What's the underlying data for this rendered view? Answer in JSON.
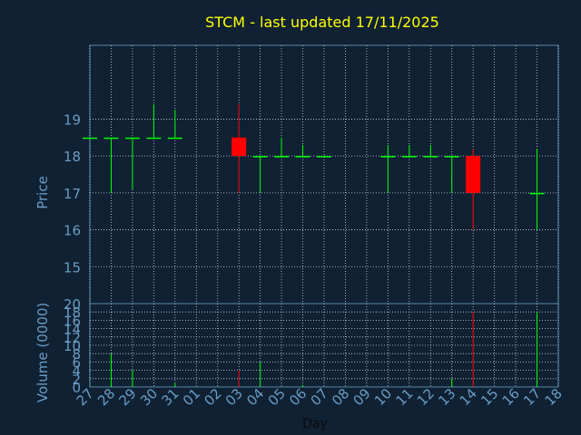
{
  "chart_data": [
    {
      "type": "candlestick",
      "title": "STCM - last updated 17/11/2025",
      "ylabel": "Price",
      "ylim": [
        14,
        21
      ],
      "yticks": [
        15,
        16,
        17,
        18,
        19
      ],
      "grid": true,
      "x_tick_labels": [
        "27",
        "28",
        "29",
        "30",
        "31",
        "01",
        "02",
        "03",
        "04",
        "05",
        "06",
        "07",
        "08",
        "09",
        "10",
        "11",
        "12",
        "13",
        "14",
        "15",
        "16",
        "17",
        "18"
      ],
      "candles": [
        {
          "day": "27",
          "open": 18.5,
          "high": 18.5,
          "low": 18.5,
          "close": 18.5
        },
        {
          "day": "28",
          "open": 18.5,
          "high": 18.5,
          "low": 17.0,
          "close": 18.5
        },
        {
          "day": "29",
          "open": 18.5,
          "high": 18.5,
          "low": 17.1,
          "close": 18.5
        },
        {
          "day": "30",
          "open": 18.5,
          "high": 19.4,
          "low": 18.5,
          "close": 18.5
        },
        {
          "day": "31",
          "open": 18.5,
          "high": 19.25,
          "low": 18.5,
          "close": 18.5
        },
        {
          "day": "03",
          "open": 18.5,
          "high": 19.4,
          "low": 17.0,
          "close": 18.0
        },
        {
          "day": "04",
          "open": 18.0,
          "high": 18.0,
          "low": 17.0,
          "close": 18.0
        },
        {
          "day": "05",
          "open": 18.0,
          "high": 18.5,
          "low": 18.0,
          "close": 18.0
        },
        {
          "day": "06",
          "open": 18.0,
          "high": 18.3,
          "low": 18.0,
          "close": 18.0
        },
        {
          "day": "07",
          "open": 18.0,
          "high": 18.0,
          "low": 18.0,
          "close": 18.0
        },
        {
          "day": "10",
          "open": 18.0,
          "high": 18.3,
          "low": 17.0,
          "close": 18.0
        },
        {
          "day": "11",
          "open": 18.0,
          "high": 18.3,
          "low": 18.0,
          "close": 18.0
        },
        {
          "day": "12",
          "open": 18.0,
          "high": 18.3,
          "low": 18.0,
          "close": 18.0
        },
        {
          "day": "13",
          "open": 18.0,
          "high": 18.0,
          "low": 17.0,
          "close": 18.0
        },
        {
          "day": "14",
          "open": 18.0,
          "high": 18.2,
          "low": 16.0,
          "close": 17.0
        },
        {
          "day": "17",
          "open": 17.0,
          "high": 18.2,
          "low": 16.0,
          "close": 17.0
        }
      ],
      "colors": {
        "up": "#00ff00",
        "down": "#ff0000"
      }
    },
    {
      "type": "bar",
      "ylabel": "Volume (0000)",
      "xlabel": "Day",
      "ylim": [
        0,
        20
      ],
      "yticks": [
        0,
        2,
        4,
        6,
        8,
        10,
        12,
        14,
        16,
        18,
        20
      ],
      "grid": true,
      "bars": [
        {
          "day": "28",
          "value": 8,
          "color": "#00ff00"
        },
        {
          "day": "29",
          "value": 4,
          "color": "#00ff00"
        },
        {
          "day": "31",
          "value": 1,
          "color": "#00ff00"
        },
        {
          "day": "03",
          "value": 4,
          "color": "#ff0000"
        },
        {
          "day": "04",
          "value": 6,
          "color": "#00ff00"
        },
        {
          "day": "06",
          "value": 0.5,
          "color": "#00ff00"
        },
        {
          "day": "13",
          "value": 2,
          "color": "#00ff00"
        },
        {
          "day": "14",
          "value": 18,
          "color": "#ff0000"
        },
        {
          "day": "17",
          "value": 18,
          "color": "#00ff00"
        }
      ]
    }
  ]
}
